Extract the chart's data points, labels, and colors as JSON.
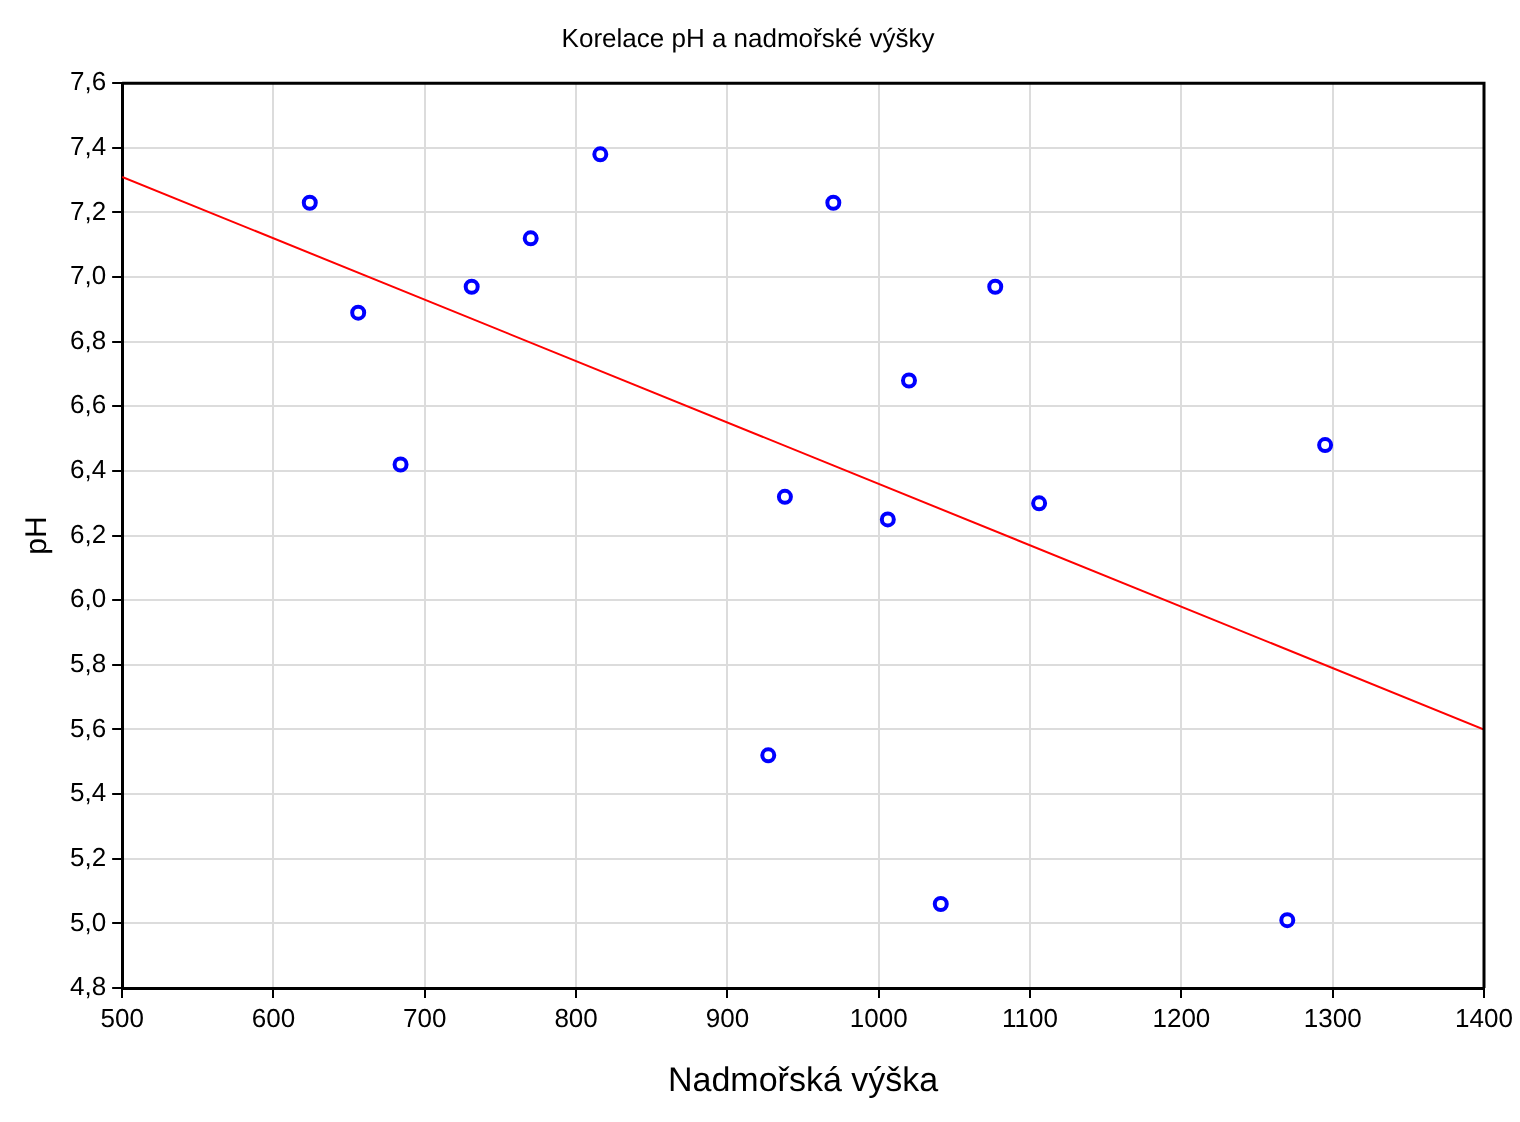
{
  "chart_data": {
    "type": "scatter",
    "title": "Korelace pH a nadmořské výšky",
    "xlabel": "Nadmořská výška",
    "ylabel": "pH",
    "xlim": [
      500,
      1400
    ],
    "xticks": [
      500,
      600,
      700,
      800,
      900,
      1000,
      1100,
      1200,
      1300,
      1400
    ],
    "ylim": [
      4.8,
      7.6
    ],
    "yticks": [
      {
        "value": 4.8,
        "label": "4,8"
      },
      {
        "value": 5.0,
        "label": "5,0"
      },
      {
        "value": 5.2,
        "label": "5,2"
      },
      {
        "value": 5.4,
        "label": "5,4"
      },
      {
        "value": 5.6,
        "label": "5,6"
      },
      {
        "value": 5.8,
        "label": "5,8"
      },
      {
        "value": 6.0,
        "label": "6,0"
      },
      {
        "value": 6.2,
        "label": "6,2"
      },
      {
        "value": 6.4,
        "label": "6,4"
      },
      {
        "value": 6.6,
        "label": "6,6"
      },
      {
        "value": 6.8,
        "label": "6,8"
      },
      {
        "value": 7.0,
        "label": "7,0"
      },
      {
        "value": 7.2,
        "label": "7,2"
      },
      {
        "value": 7.4,
        "label": "7,4"
      },
      {
        "value": 7.6,
        "label": "7,6"
      }
    ],
    "grid": true,
    "legend": false,
    "marker": "circle",
    "series": [
      {
        "color": "#0000ff",
        "x": [
          624,
          656,
          684,
          731,
          770,
          816,
          938,
          970,
          1077,
          1020,
          1006,
          1106,
          1295,
          927,
          1041,
          1270
        ],
        "values": [
          7.23,
          6.89,
          6.42,
          6.97,
          7.12,
          7.38,
          6.32,
          7.23,
          6.97,
          6.68,
          6.25,
          6.3,
          6.48,
          5.52,
          5.06,
          5.01
        ]
      },
      {
        "type": "line",
        "color": "#ff0000",
        "marker": "none",
        "x": [
          500,
          1400
        ],
        "values": [
          7.31,
          5.6
        ]
      }
    ]
  }
}
